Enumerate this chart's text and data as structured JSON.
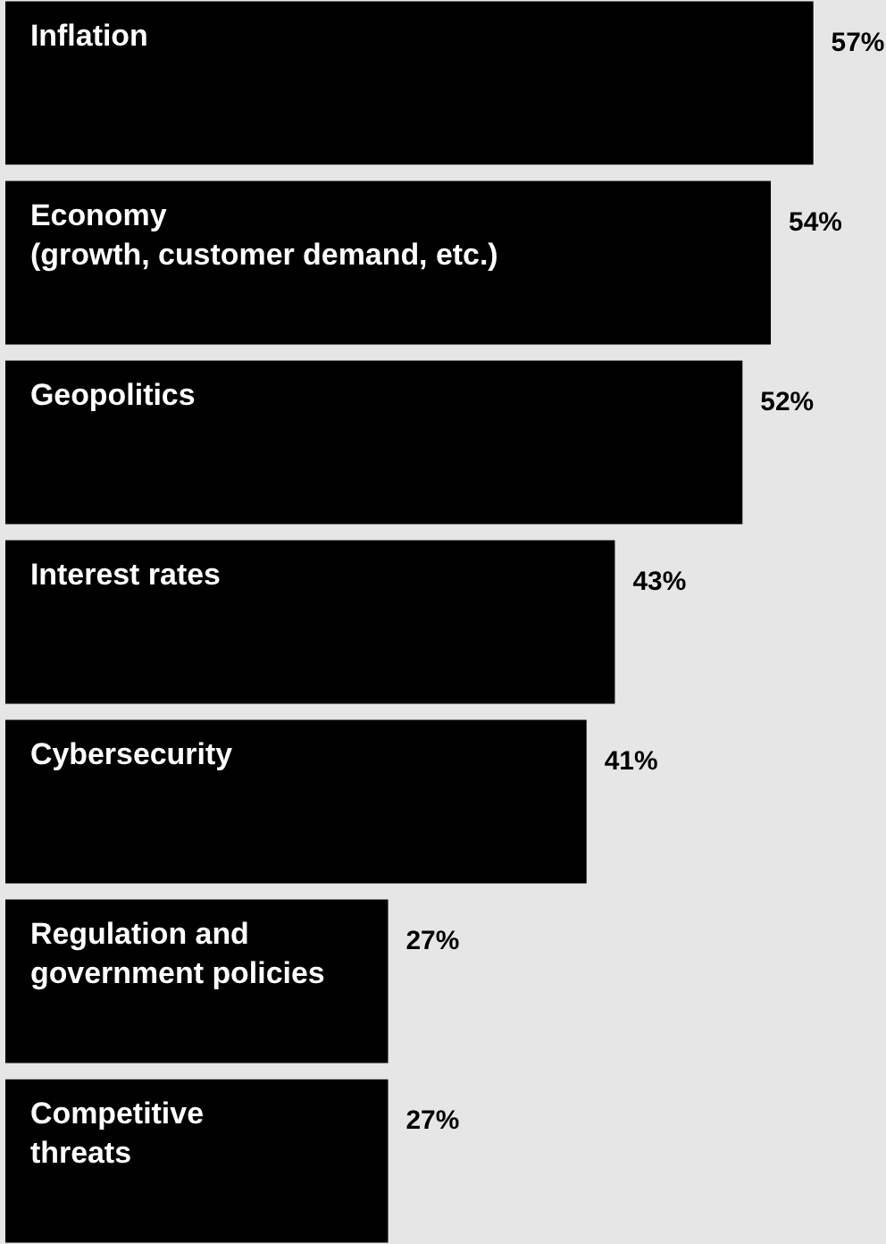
{
  "chart_data": {
    "type": "bar",
    "orientation": "horizontal",
    "categories": [
      "Inflation",
      "Economy\n(growth, customer demand, etc.)",
      "Geopolitics",
      "Interest rates",
      "Cybersecurity",
      "Regulation and\ngovernment policies",
      "Competitive\nthreats"
    ],
    "values": [
      57,
      54,
      52,
      43,
      41,
      27,
      27
    ],
    "value_labels": [
      "57%",
      "54%",
      "52%",
      "43%",
      "41%",
      "27%",
      "27%"
    ],
    "color": "#000000",
    "xlim": [
      0,
      62
    ],
    "tick_labels": false
  }
}
